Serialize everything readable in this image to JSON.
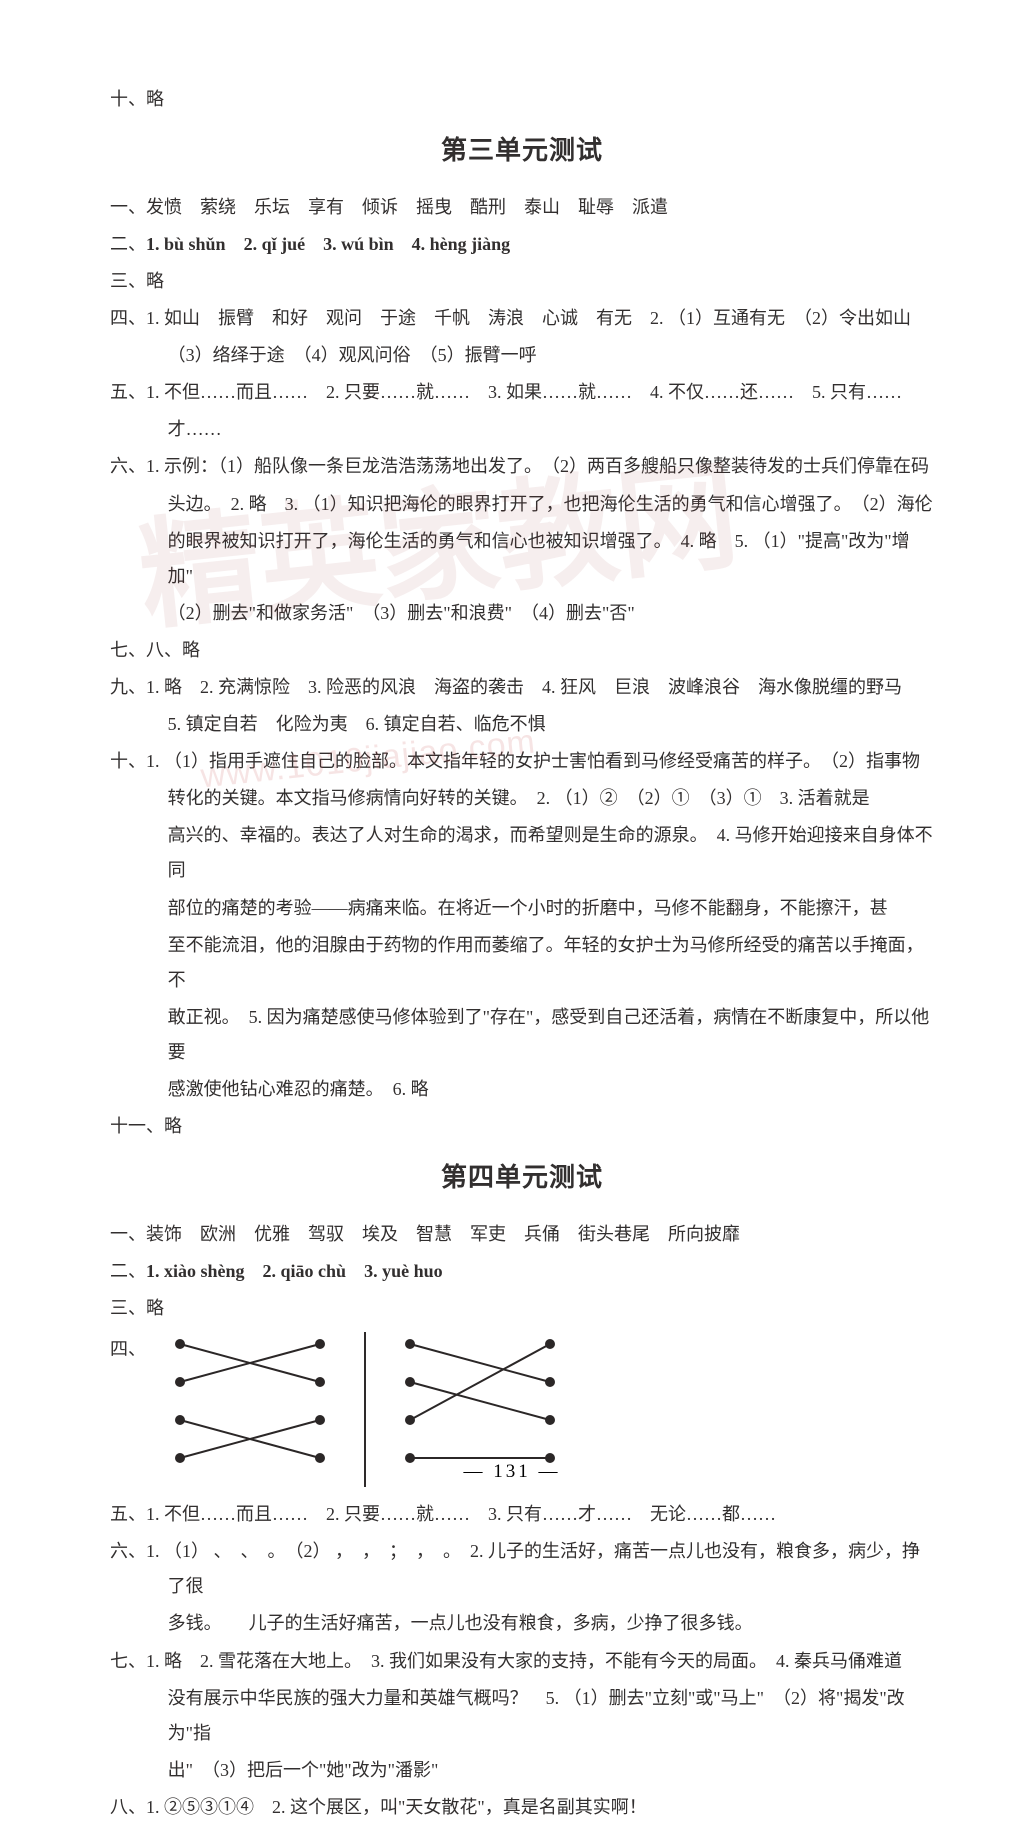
{
  "top_note": "十、略",
  "section3": {
    "title": "第三单元测试",
    "q1": {
      "label": "一、",
      "text": "发愤　萦绕　乐坛　享有　倾诉　摇曳　酷刑　泰山　耻辱　派遣"
    },
    "q2": {
      "label": "二、",
      "items": [
        "1. bù  shǔn",
        "2. qǐ  jué",
        "3. wú  bìn",
        "4. hèng  jiàng"
      ]
    },
    "q3": {
      "label": "三、",
      "text": "略"
    },
    "q4": {
      "label": "四、",
      "line1": "1. 如山　振臂　和好　观问　于途　千帆　涛浪　心诚　有无　2. （1）互通有无　（2）令出如山",
      "line2": "（3）络绎于途　（4）观风问俗　（5）振臂一呼"
    },
    "q5": {
      "label": "五、",
      "line1": "1. 不但……而且……　2. 只要……就……　3. 如果……就……　4. 不仅……还……　5. 只有……",
      "line2": "才……"
    },
    "q6": {
      "label": "六、",
      "line1": "1. 示例：（1）船队像一条巨龙浩浩荡荡地出发了。　（2）两百多艘船只像整装待发的士兵们停靠在码",
      "line2": "头边。　2. 略　3. （1）知识把海伦的眼界打开了，也把海伦生活的勇气和信心增强了。　（2）海伦",
      "line3": "的眼界被知识打开了，海伦生活的勇气和信心也被知识增强了。　4. 略　5. （1）\"提高\"改为\"增加\"",
      "line4": "（2）删去\"和做家务活\"　（3）删去\"和浪费\"　（4）删去\"否\""
    },
    "q78": {
      "label": "七、八、",
      "text": "略"
    },
    "q9": {
      "label": "九、",
      "line1": "1. 略　2. 充满惊险　3. 险恶的风浪　海盗的袭击　4. 狂风　巨浪　波峰浪谷　海水像脱缰的野马",
      "line2": "5. 镇定自若　化险为夷　6. 镇定自若、临危不惧"
    },
    "q10": {
      "label": "十、",
      "line1": "1. （1）指用手遮住自己的脸部。本文指年轻的女护士害怕看到马修经受痛苦的样子。　（2）指事物",
      "line2": "转化的关键。本文指马修病情向好转的关键。　2. （1）②　（2）①　（3）①　3. 活着就是",
      "line3": "高兴的、幸福的。表达了人对生命的渴求，而希望则是生命的源泉。　4. 马修开始迎接来自身体不同",
      "line4": "部位的痛楚的考验——病痛来临。在将近一个小时的折磨中，马修不能翻身，不能擦汗，甚",
      "line5": "至不能流泪，他的泪腺由于药物的作用而萎缩了。年轻的女护士为马修所经受的痛苦以手掩面，不",
      "line6": "敢正视。　5. 因为痛楚感使马修体验到了\"存在\"，感受到自己还活着，病情在不断康复中，所以他要",
      "line7": "感激使他钻心难忍的痛楚。　6. 略"
    },
    "q11": {
      "label": "十一、",
      "text": "略"
    }
  },
  "section4": {
    "title": "第四单元测试",
    "q1": {
      "label": "一、",
      "text": "装饰　欧洲　优雅　驾驭　埃及　智慧　军吏　兵俑　街头巷尾　所向披靡"
    },
    "q2": {
      "label": "二、",
      "items": [
        "1. xiào  shèng",
        "2. qiāo  chù",
        "3. yuè  huo"
      ]
    },
    "q3": {
      "label": "三、",
      "text": "略"
    },
    "q4": {
      "label": "四、",
      "match": {
        "type": "matching-diagram",
        "dot_color": "#2b2727",
        "line_color": "#2b2727",
        "line_width": 2,
        "dot_radius": 5,
        "row_spacing": 38,
        "col_gap": 140,
        "groups": [
          {
            "left_count": 4,
            "right_count": 4,
            "edges_left_to_right": [
              [
                0,
                1
              ],
              [
                1,
                0
              ],
              [
                2,
                3
              ],
              [
                3,
                2
              ]
            ]
          },
          {
            "left_count": 4,
            "right_count": 4,
            "edges_left_to_right": [
              [
                0,
                1
              ],
              [
                1,
                2
              ],
              [
                2,
                0
              ],
              [
                3,
                3
              ]
            ]
          }
        ]
      }
    },
    "q5": {
      "label": "五、",
      "text": "1. 不但……而且……　2. 只要……就……　3. 只有……才……　无论……都……"
    },
    "q6": {
      "label": "六、",
      "line1": "1. （1） 、　、　。　（2） ，　，　；　，　。　2. 儿子的生活好，痛苦一点儿也没有，粮食多，病少，挣了很",
      "line2": "多钱。　　儿子的生活好痛苦，一点儿也没有粮食，多病，少挣了很多钱。"
    },
    "q7": {
      "label": "七、",
      "line1": "1. 略　2. 雪花落在大地上。　3. 我们如果没有大家的支持，不能有今天的局面。　4. 秦兵马俑难道",
      "line2": "没有展示中华民族的强大力量和英雄气概吗？　5. （1）删去\"立刻\"或\"马上\"　（2）将\"揭发\"改为\"指",
      "line3": "出\"　（3）把后一个\"她\"改为\"潘影\""
    },
    "q8": {
      "label": "八、",
      "text": "1. ②⑤③①④　2. 这个展区，叫\"天女散花\"，真是名副其实啊！"
    }
  },
  "page_number_prefix": "—  ",
  "page_number": "131",
  "page_number_suffix": "  —",
  "watermark_text": "精英家教网",
  "watermark_url": "www.1010jiajiao.com"
}
